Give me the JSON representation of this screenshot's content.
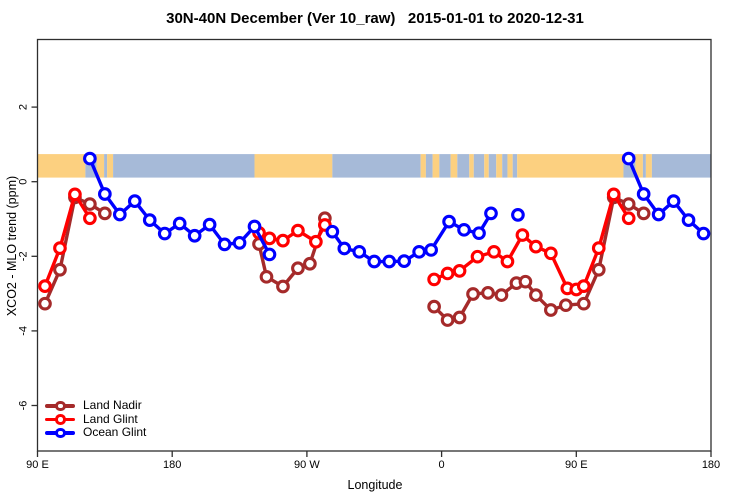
{
  "figure": {
    "title": "30N-40N December (Ver 10_raw)   2015-01-01 to 2020-12-31"
  },
  "chart_data": {
    "type": "line",
    "title": "30N-40N December (Ver 10_raw)   2015-01-01 to 2020-12-31",
    "xlabel": "Longitude",
    "ylabel": "XCO2 - MLO trend (ppm)",
    "x_axis": {
      "note": "longitude increases eastward from 90E and wraps around the globe; positions are cumulative degrees 90..540",
      "range": [
        90,
        540
      ],
      "ticks": [
        {
          "pos": 90,
          "label": "90 E"
        },
        {
          "pos": 180,
          "label": "180"
        },
        {
          "pos": 270,
          "label": "90 W"
        },
        {
          "pos": 360,
          "label": "0"
        },
        {
          "pos": 450,
          "label": "90 E"
        },
        {
          "pos": 540,
          "label": "180"
        }
      ]
    },
    "y_axis": {
      "range": [
        -7.2,
        3.8
      ],
      "ticks": [
        {
          "pos": 2,
          "label": "2"
        },
        {
          "pos": 0,
          "label": "0"
        },
        {
          "pos": -2,
          "label": "-2"
        },
        {
          "pos": -4,
          "label": "-4"
        },
        {
          "pos": -6,
          "label": "-6"
        }
      ]
    },
    "map_band": {
      "comment": "strip showing land/ocean of the 30N-40N latitude belt",
      "y_from": 0.11,
      "y_to": 0.74,
      "land_color": "#FCD080",
      "ocean_color": "#A6BAD8",
      "segments": [
        {
          "from": 90,
          "to": 122,
          "type": "land"
        },
        {
          "from": 122,
          "to": 129.5,
          "type": "ocean"
        },
        {
          "from": 129.5,
          "to": 134.5,
          "type": "land"
        },
        {
          "from": 134.5,
          "to": 136.5,
          "type": "ocean"
        },
        {
          "from": 136.5,
          "to": 140.5,
          "type": "land"
        },
        {
          "from": 140.5,
          "to": 235,
          "type": "ocean"
        },
        {
          "from": 235,
          "to": 287,
          "type": "land"
        },
        {
          "from": 287,
          "to": 346,
          "type": "ocean"
        },
        {
          "from": 346,
          "to": 349.5,
          "type": "land"
        },
        {
          "from": 349.5,
          "to": 354,
          "type": "ocean"
        },
        {
          "from": 354,
          "to": 358.5,
          "type": "land"
        },
        {
          "from": 358.5,
          "to": 366,
          "type": "ocean"
        },
        {
          "from": 366,
          "to": 370.5,
          "type": "land"
        },
        {
          "from": 370.5,
          "to": 378.5,
          "type": "ocean"
        },
        {
          "from": 378.5,
          "to": 381.5,
          "type": "land"
        },
        {
          "from": 381.5,
          "to": 388.5,
          "type": "ocean"
        },
        {
          "from": 388.5,
          "to": 391.5,
          "type": "land"
        },
        {
          "from": 391.5,
          "to": 396.5,
          "type": "ocean"
        },
        {
          "from": 396.5,
          "to": 400.5,
          "type": "land"
        },
        {
          "from": 400.5,
          "to": 404,
          "type": "ocean"
        },
        {
          "from": 404,
          "to": 407.5,
          "type": "land"
        },
        {
          "from": 407.5,
          "to": 410.5,
          "type": "ocean"
        },
        {
          "from": 410.5,
          "to": 481.5,
          "type": "land"
        },
        {
          "from": 481.5,
          "to": 489.5,
          "type": "ocean"
        },
        {
          "from": 489.5,
          "to": 494.5,
          "type": "land"
        },
        {
          "from": 494.5,
          "to": 496.5,
          "type": "ocean"
        },
        {
          "from": 496.5,
          "to": 500.5,
          "type": "land"
        },
        {
          "from": 500.5,
          "to": 540,
          "type": "ocean"
        }
      ]
    },
    "series": [
      {
        "name": "Land Nadir",
        "color": "#A52A2A",
        "segments": [
          [
            [
              95,
              -3.27
            ],
            [
              105,
              -2.36
            ],
            [
              115,
              -0.42
            ],
            [
              125,
              -0.6
            ],
            [
              135,
              -0.85
            ]
          ],
          [
            [
              238,
              -1.67
            ],
            [
              243,
              -2.55
            ],
            [
              254,
              -2.81
            ],
            [
              264,
              -2.32
            ],
            [
              272,
              -2.2
            ],
            [
              282,
              -0.98
            ]
          ],
          [
            [
              355,
              -3.35
            ],
            [
              364,
              -3.71
            ],
            [
              372,
              -3.64
            ],
            [
              381,
              -3.01
            ],
            [
              391,
              -2.98
            ],
            [
              400,
              -3.04
            ],
            [
              410,
              -2.72
            ],
            [
              416,
              -2.68
            ],
            [
              423,
              -3.04
            ],
            [
              433,
              -3.44
            ],
            [
              443,
              -3.31
            ],
            [
              455,
              -3.27
            ],
            [
              465,
              -2.36
            ],
            [
              475,
              -0.42
            ],
            [
              485,
              -0.6
            ],
            [
              495,
              -0.85
            ]
          ]
        ]
      },
      {
        "name": "Land Glint",
        "color": "#FF0000",
        "segments": [
          [
            [
              95,
              -2.8
            ],
            [
              105,
              -1.78
            ],
            [
              115,
              -0.34
            ],
            [
              125,
              -0.98
            ]
          ],
          [
            [
              238,
              -1.37
            ],
            [
              245,
              -1.52
            ],
            [
              254,
              -1.58
            ],
            [
              264,
              -1.31
            ],
            [
              276,
              -1.61
            ],
            [
              282,
              -1.16
            ]
          ],
          [
            [
              355,
              -2.62
            ],
            [
              364,
              -2.46
            ],
            [
              372,
              -2.39
            ],
            [
              384,
              -2.01
            ],
            [
              395,
              -1.88
            ],
            [
              404,
              -2.14
            ],
            [
              414,
              -1.43
            ],
            [
              423,
              -1.74
            ],
            [
              433,
              -1.92
            ],
            [
              444,
              -2.86
            ],
            [
              450,
              -2.89
            ],
            [
              455,
              -2.8
            ],
            [
              465,
              -1.78
            ],
            [
              475,
              -0.34
            ],
            [
              485,
              -0.98
            ]
          ]
        ]
      },
      {
        "name": "Ocean Glint",
        "color": "#0000FF",
        "segments": [
          [
            [
              125,
              0.62
            ],
            [
              135,
              -0.33
            ],
            [
              145,
              -0.88
            ],
            [
              155,
              -0.52
            ],
            [
              165,
              -1.03
            ],
            [
              175,
              -1.39
            ],
            [
              185,
              -1.12
            ],
            [
              195,
              -1.45
            ],
            [
              205,
              -1.15
            ],
            [
              215,
              -1.68
            ],
            [
              225,
              -1.64
            ],
            [
              235,
              -1.2
            ],
            [
              245,
              -1.95
            ]
          ],
          [
            [
              287,
              -1.34
            ],
            [
              295,
              -1.79
            ],
            [
              305,
              -1.88
            ],
            [
              315,
              -2.14
            ],
            [
              325,
              -2.14
            ],
            [
              335,
              -2.13
            ],
            [
              345,
              -1.88
            ],
            [
              353,
              -1.83
            ],
            [
              365,
              -1.07
            ],
            [
              375,
              -1.29
            ],
            [
              385,
              -1.38
            ],
            [
              393,
              -0.85
            ]
          ],
          [
            [
              411,
              -0.89
            ]
          ],
          [
            [
              485,
              0.62
            ],
            [
              495,
              -0.33
            ],
            [
              505,
              -0.88
            ],
            [
              515,
              -0.52
            ],
            [
              525,
              -1.03
            ],
            [
              535,
              -1.39
            ]
          ]
        ]
      }
    ],
    "legend": {
      "position": "bottom-left",
      "entries": [
        "Land Nadir",
        "Land Glint",
        "Ocean Glint"
      ]
    },
    "style": {
      "axis_color": "#2E2E2E",
      "line_width": 3.4,
      "marker_radius": 5.3,
      "marker_ring": 3.1,
      "marker_fill": "#FFFFFF"
    }
  }
}
